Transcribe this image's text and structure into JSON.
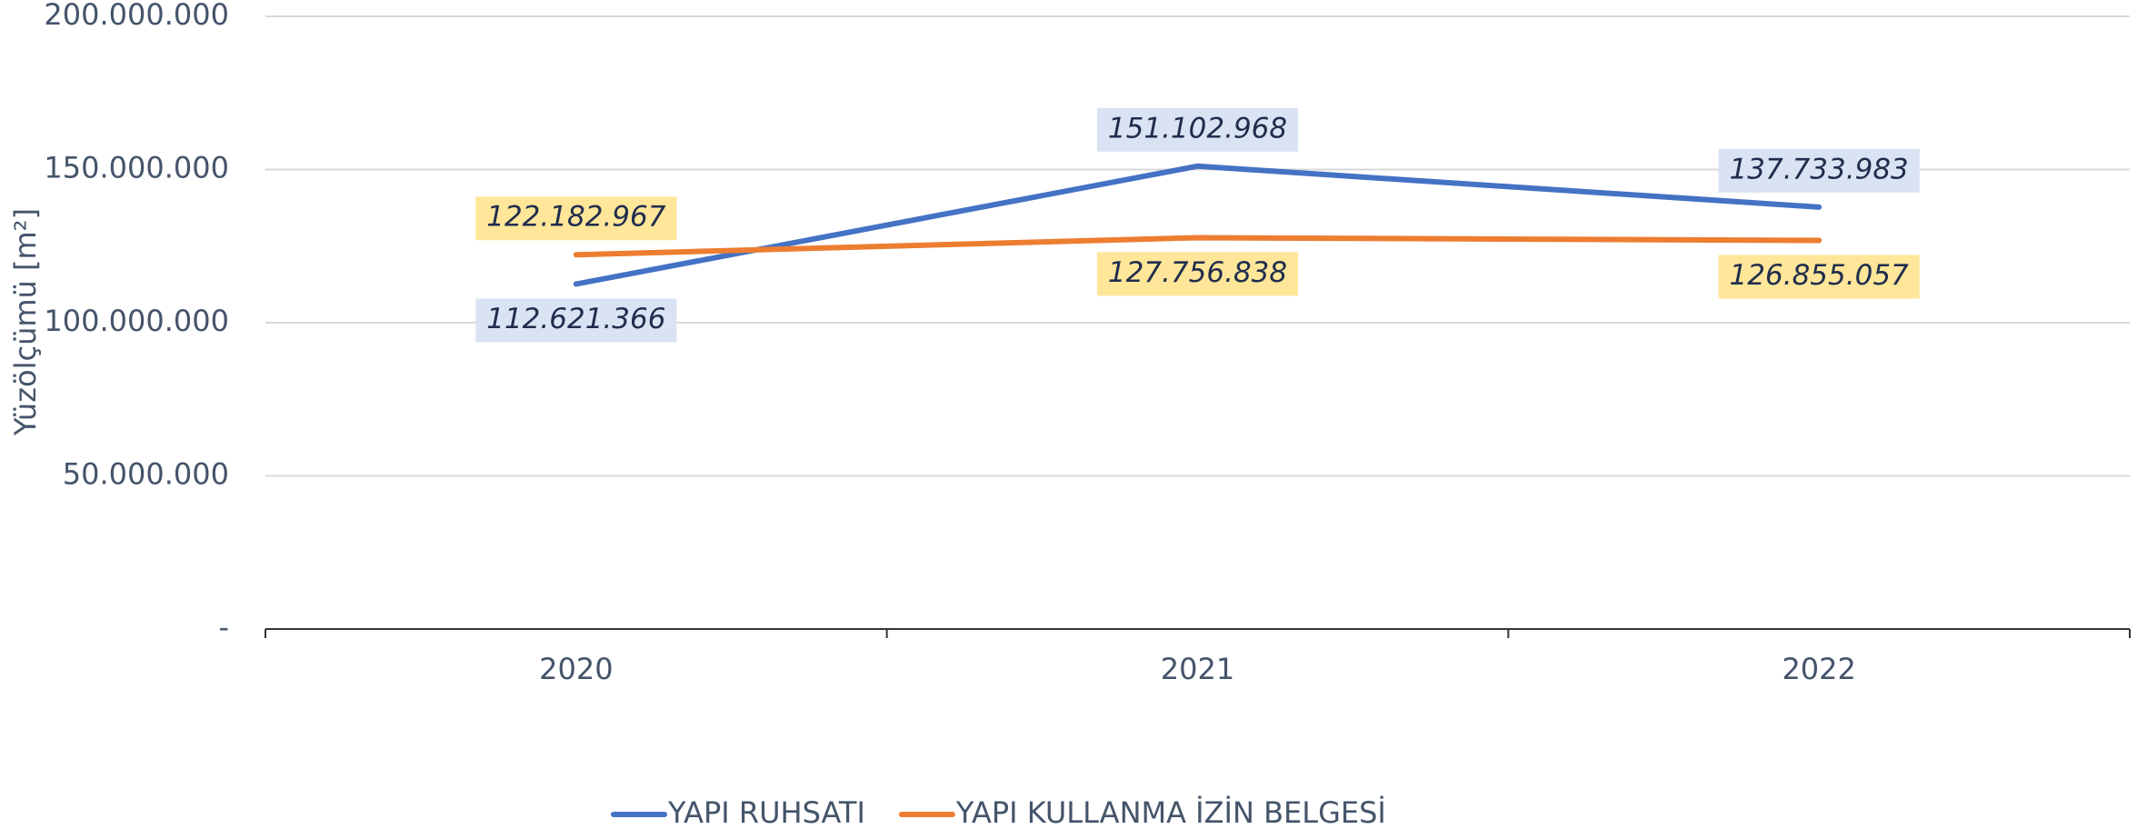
{
  "chart_data": {
    "type": "line",
    "y_label": "Yüzölçümü [m²]",
    "categories": [
      "2020",
      "2021",
      "2022"
    ],
    "series": [
      {
        "name": "YAPI RUHSATI",
        "color": "#4472c4",
        "label_bg": "#dae3f3",
        "values": [
          112621366,
          151102968,
          137733983
        ],
        "value_labels": [
          "112.621.366",
          "151.102.968",
          "137.733.983"
        ]
      },
      {
        "name": "YAPI KULLANMA İZİN BELGESİ",
        "color": "#ed7d31",
        "label_bg": "#ffe699",
        "values": [
          122182967,
          127756838,
          126855057
        ],
        "value_labels": [
          "122.182.967",
          "127.756.838",
          "126.855.057"
        ]
      }
    ],
    "ylim": [
      0,
      200000000
    ],
    "yticks": [
      {
        "value": 0,
        "label": "-"
      },
      {
        "value": 50000000,
        "label": "50.000.000"
      },
      {
        "value": 100000000,
        "label": "100.000.000"
      },
      {
        "value": 150000000,
        "label": "150.000.000"
      },
      {
        "value": 200000000,
        "label": "200.000.000"
      }
    ],
    "grid": true,
    "legend": "bottom"
  }
}
